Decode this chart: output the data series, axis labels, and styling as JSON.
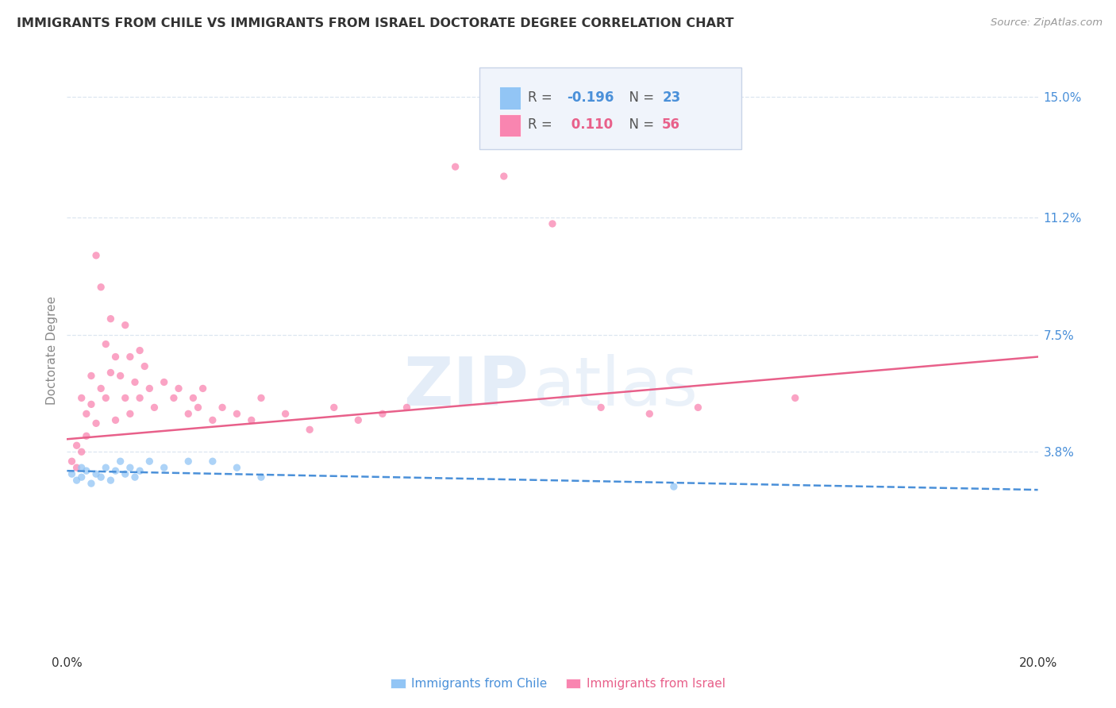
{
  "title": "IMMIGRANTS FROM CHILE VS IMMIGRANTS FROM ISRAEL DOCTORATE DEGREE CORRELATION CHART",
  "source_text": "Source: ZipAtlas.com",
  "ylabel": "Doctorate Degree",
  "xlim": [
    0.0,
    0.2
  ],
  "ylim": [
    -0.025,
    0.165
  ],
  "ytick_vals": [
    0.038,
    0.075,
    0.112,
    0.15
  ],
  "ytick_labels": [
    "3.8%",
    "7.5%",
    "11.2%",
    "15.0%"
  ],
  "xtick_vals": [
    0.0,
    0.2
  ],
  "xtick_labels": [
    "0.0%",
    "20.0%"
  ],
  "color_chile": "#92c5f5",
  "color_israel": "#f985b0",
  "trendline_chile_color": "#4a90d9",
  "trendline_israel_color": "#e8608a",
  "watermark_color": "#d0e4f7",
  "background_color": "#ffffff",
  "grid_color": "#dce6f0",
  "legend_box_color": "#e8eef8",
  "legend_text_color_chile": "#4a90d9",
  "legend_text_color_israel": "#e8608a",
  "tick_label_color_right": "#4a90d9",
  "tick_label_color_bottom": "#333333",
  "source_color": "#999999",
  "ylabel_color": "#888888",
  "title_color": "#333333",
  "chile_trend_x0": 0.0,
  "chile_trend_x1": 0.2,
  "chile_trend_y0": 0.032,
  "chile_trend_y1": 0.026,
  "israel_trend_x0": 0.0,
  "israel_trend_x1": 0.2,
  "israel_trend_y0": 0.042,
  "israel_trend_y1": 0.068
}
